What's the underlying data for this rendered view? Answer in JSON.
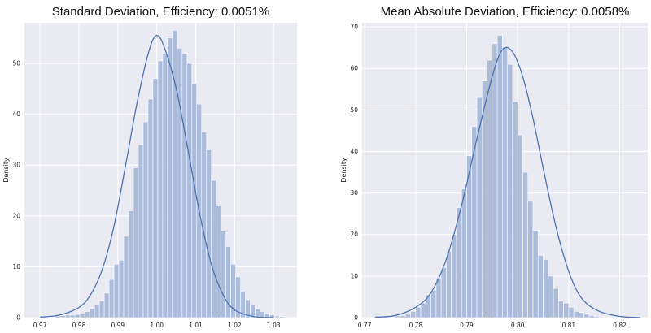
{
  "chart_data": [
    {
      "type": "bar",
      "subtype": "histogram-with-kde",
      "title": "Standard Deviation, Efficiency: 0.0051%",
      "xlabel": "",
      "ylabel": "Density",
      "xlim": [
        0.966,
        1.036
      ],
      "ylim": [
        0,
        58
      ],
      "xticks": [
        0.97,
        0.98,
        0.99,
        1.0,
        1.01,
        1.02,
        1.03
      ],
      "xtick_labels": [
        "0.97",
        "0.98",
        "0.99",
        "1.00",
        "1.01",
        "1.02",
        "1.03"
      ],
      "yticks": [
        0,
        10,
        20,
        30,
        40,
        50
      ],
      "grid": true,
      "background_color": "#EAEAF2",
      "bar_color": "#A8B8D8",
      "line_color": "#4C72B0",
      "bins": {
        "start": 0.974,
        "width": 0.00125,
        "heights": [
          0.3,
          0.4,
          0.5,
          0.5,
          0.6,
          0.9,
          1.2,
          1.8,
          2.5,
          3.3,
          4.8,
          7.5,
          10.5,
          11.3,
          16.0,
          21.0,
          29.5,
          34.0,
          38.5,
          43.0,
          47.0,
          50.5,
          52.0,
          55.0,
          56.5,
          53.0,
          52.0,
          50.0,
          46.0,
          42.0,
          36.5,
          33.0,
          27.0,
          22.0,
          17.0,
          14.0,
          10.5,
          8.0,
          5.2,
          3.5,
          2.5,
          1.7,
          1.2,
          0.8,
          0.5,
          0.3,
          0.2,
          0.15,
          0.1
        ]
      },
      "kde": {
        "x": [
          0.97,
          0.975,
          0.98,
          0.983,
          0.986,
          0.989,
          0.992,
          0.995,
          0.998,
          1.0,
          1.002,
          1.005,
          1.008,
          1.011,
          1.014,
          1.017,
          1.02,
          1.025,
          1.03
        ],
        "y": [
          0.1,
          0.5,
          2.0,
          4.5,
          9.5,
          18.0,
          30.0,
          42.5,
          52.5,
          55.5,
          53.0,
          45.0,
          33.0,
          20.5,
          10.5,
          4.5,
          1.5,
          0.2,
          0.0
        ]
      }
    },
    {
      "type": "bar",
      "subtype": "histogram-with-kde",
      "title": "Mean Absolute Deviation, Efficiency: 0.0058%",
      "xlabel": "",
      "ylabel": "Density",
      "xlim": [
        0.7695,
        0.8255
      ],
      "ylim": [
        0,
        71
      ],
      "xticks": [
        0.77,
        0.78,
        0.79,
        0.8,
        0.81,
        0.82
      ],
      "xtick_labels": [
        "0.77",
        "0.78",
        "0.79",
        "0.80",
        "0.81",
        "0.82"
      ],
      "yticks": [
        0,
        10,
        20,
        30,
        40,
        50,
        60,
        70
      ],
      "grid": true,
      "background_color": "#EAEAF2",
      "bar_color": "#A8B8D8",
      "line_color": "#4C72B0",
      "bins": {
        "start": 0.776,
        "width": 0.001,
        "heights": [
          0.4,
          0.5,
          0.8,
          1.5,
          2.5,
          3.5,
          5.5,
          6.5,
          9.5,
          12.0,
          16.0,
          20.0,
          26.5,
          31.0,
          39.0,
          46.0,
          53.0,
          57.0,
          62.0,
          66.0,
          68.0,
          65.0,
          61.0,
          52.0,
          44.0,
          35.0,
          28.0,
          21.0,
          15.0,
          14.0,
          10.0,
          7.0,
          4.0,
          3.5,
          2.5,
          1.5,
          1.2,
          0.8,
          0.5,
          0.3
        ]
      },
      "kde": {
        "x": [
          0.772,
          0.776,
          0.78,
          0.783,
          0.786,
          0.789,
          0.792,
          0.795,
          0.797,
          0.799,
          0.801,
          0.803,
          0.805,
          0.807,
          0.809,
          0.811,
          0.813,
          0.816,
          0.82,
          0.824
        ],
        "y": [
          0.1,
          0.5,
          2.5,
          6.0,
          14.0,
          27.0,
          43.0,
          58.0,
          64.5,
          64.0,
          58.0,
          48.0,
          36.0,
          24.5,
          15.0,
          8.0,
          4.0,
          1.5,
          0.3,
          0.0
        ]
      }
    }
  ]
}
